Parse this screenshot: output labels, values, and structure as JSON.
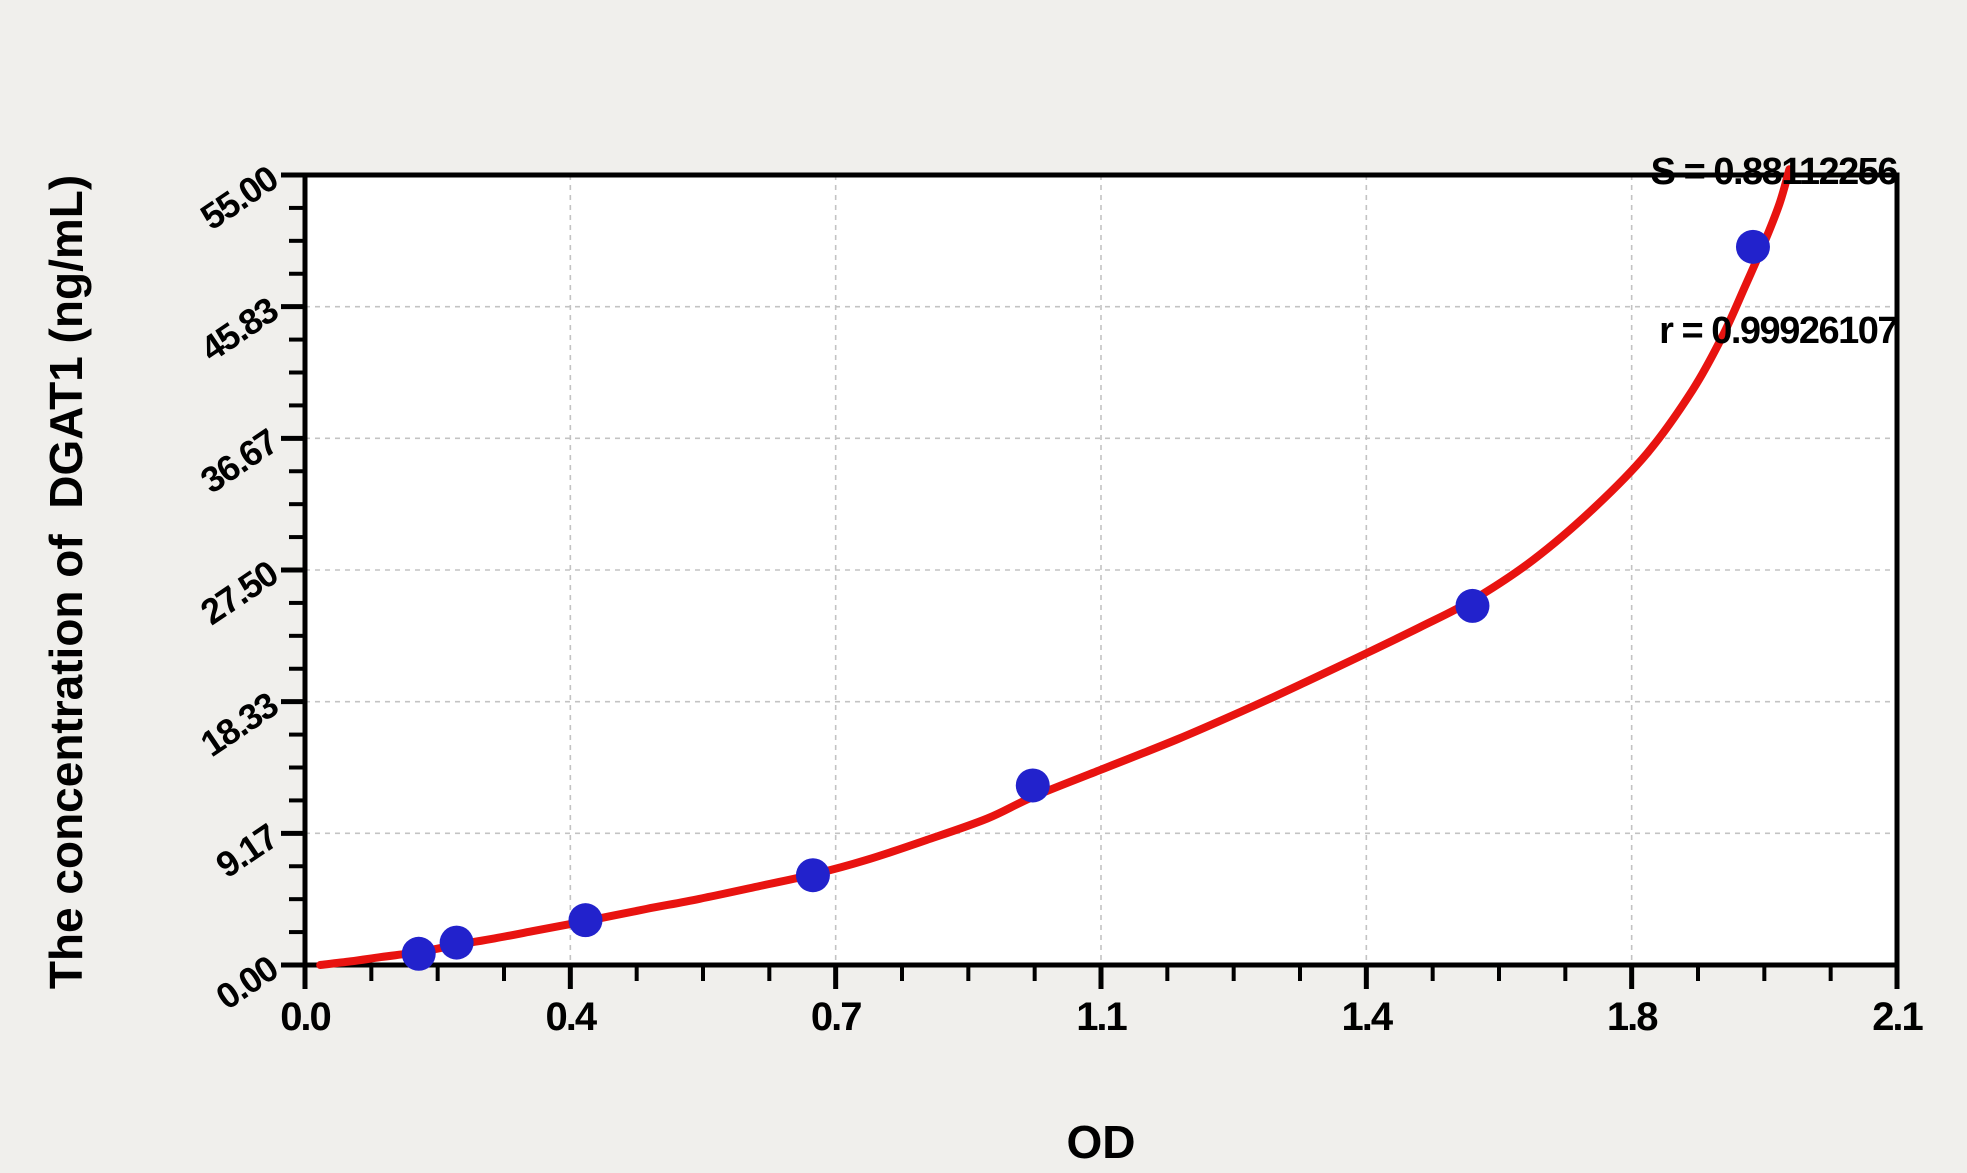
{
  "chart_data": {
    "type": "scatter",
    "title": "",
    "xlabel": "OD",
    "ylabel": "The concentration of  DGAT1 (ng/mL)",
    "fit_annotation": {
      "s": "S = 0.88112256",
      "r": "r = 0.99926107"
    },
    "fit_values": {
      "S": 0.88112256,
      "r": 0.99926107
    },
    "xlim": [
      0,
      2.1
    ],
    "ylim": [
      0,
      55
    ],
    "x_ticks": {
      "values": [
        0,
        0.35,
        0.7,
        1.05,
        1.4,
        1.75,
        2.1
      ],
      "labels": [
        "0.0",
        "0.4",
        "0.7",
        "1.1",
        "1.4",
        "1.8",
        "2.1"
      ],
      "minor_divisions": 4
    },
    "y_ticks": {
      "values": [
        0,
        9.1667,
        18.3333,
        27.5,
        36.6667,
        45.8333,
        55
      ],
      "labels": [
        "0.00",
        "9.17",
        "18.33",
        "27.50",
        "36.67",
        "45.83",
        "55.00"
      ],
      "minor_divisions": 4
    },
    "grid": {
      "show": true,
      "style": "dashed",
      "color": "#c3c3c3"
    },
    "legend": {
      "show": false
    },
    "colors": {
      "background": "#f0efec",
      "plot_background": "#ffffff",
      "frame": "#000000",
      "curve": "#e81310",
      "points": "#2222cc",
      "text": "#000000"
    },
    "series": [
      {
        "name": "standard-points",
        "type": "scatter",
        "marker": "circle",
        "x": [
          0.15,
          0.2,
          0.37,
          0.67,
          0.96,
          1.54,
          1.91
        ],
        "y": [
          0.78,
          1.56,
          3.12,
          6.25,
          12.5,
          25,
          50
        ]
      },
      {
        "name": "fitted-curve",
        "type": "line",
        "points": [
          [
            0.02,
            0
          ],
          [
            0.06,
            0.25
          ],
          [
            0.1,
            0.55
          ],
          [
            0.15,
            0.9
          ],
          [
            0.2,
            1.4
          ],
          [
            0.25,
            1.85
          ],
          [
            0.3,
            2.35
          ],
          [
            0.37,
            3.05
          ],
          [
            0.45,
            3.9
          ],
          [
            0.52,
            4.6
          ],
          [
            0.6,
            5.5
          ],
          [
            0.67,
            6.3
          ],
          [
            0.74,
            7.3
          ],
          [
            0.82,
            8.7
          ],
          [
            0.9,
            10.2
          ],
          [
            0.96,
            11.7
          ],
          [
            1.05,
            13.6
          ],
          [
            1.15,
            15.7
          ],
          [
            1.25,
            18.0
          ],
          [
            1.32,
            19.7
          ],
          [
            1.4,
            21.7
          ],
          [
            1.47,
            23.5
          ],
          [
            1.54,
            25.4
          ],
          [
            1.62,
            28.2
          ],
          [
            1.7,
            31.8
          ],
          [
            1.77,
            35.6
          ],
          [
            1.83,
            40.0
          ],
          [
            1.87,
            43.8
          ],
          [
            1.9,
            47.3
          ],
          [
            1.925,
            50.3
          ],
          [
            1.945,
            53.0
          ],
          [
            1.958,
            55.4
          ]
        ]
      }
    ]
  }
}
